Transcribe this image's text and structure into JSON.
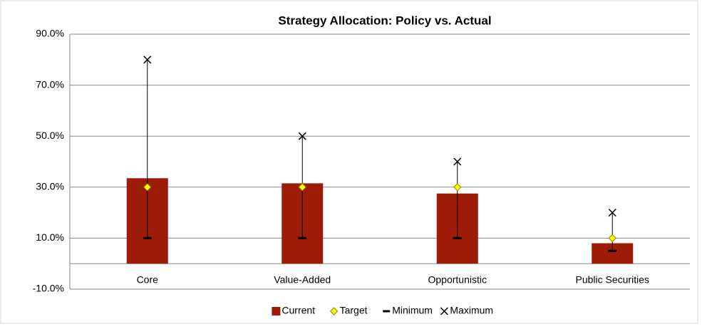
{
  "chart_data": {
    "type": "bar",
    "title": "Strategy Allocation: Policy vs. Actual",
    "categories": [
      "Core",
      "Value-Added",
      "Opportunistic",
      "Public Securities"
    ],
    "series": [
      {
        "name": "Current",
        "marker": "bar",
        "color": "#9c1c08",
        "values": [
          33.5,
          31.5,
          27.5,
          8
        ]
      },
      {
        "name": "Target",
        "marker": "diamond",
        "color": "#ffff00",
        "values": [
          30,
          30,
          30,
          10
        ]
      },
      {
        "name": "Minimum",
        "marker": "dash",
        "color": "#000000",
        "values": [
          10,
          10,
          10,
          5
        ]
      },
      {
        "name": "Maximum",
        "marker": "x",
        "color": "#000000",
        "values": [
          80,
          50,
          40,
          20
        ]
      }
    ],
    "ylim": [
      -10,
      90
    ],
    "yticks": [
      {
        "value": -10,
        "label": "-10.0%"
      },
      {
        "value": 10,
        "label": "10.0%"
      },
      {
        "value": 30,
        "label": "30.0%"
      },
      {
        "value": 50,
        "label": "50.0%"
      },
      {
        "value": 70,
        "label": "70.0%"
      },
      {
        "value": 90,
        "label": "90.0%"
      }
    ],
    "grid": true,
    "legend": "bottom"
  }
}
